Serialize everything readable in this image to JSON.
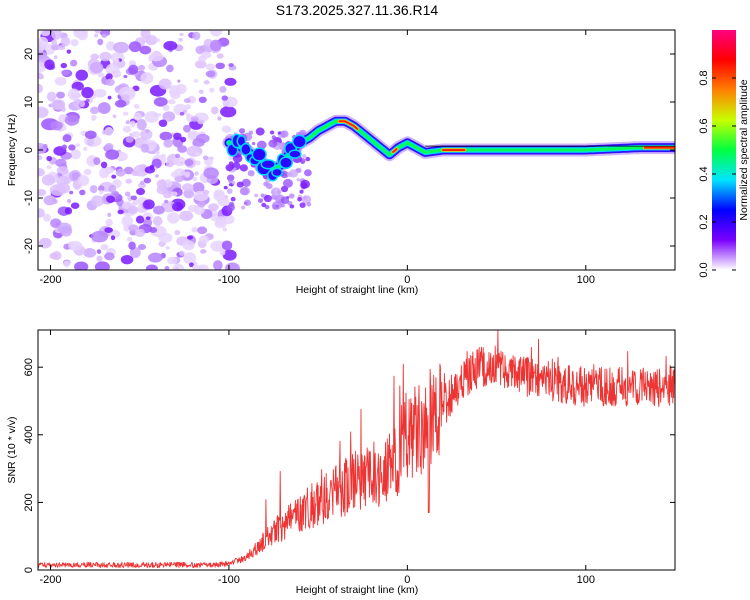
{
  "figure_title": "S173.2025.327.11.36.R14",
  "chart_data": [
    {
      "type": "heatmap",
      "name": "spectrogram",
      "xlabel": "Height of straight line (km)",
      "ylabel": "Frequency (Hz)",
      "xlim": [
        -207,
        150
      ],
      "ylim": [
        -25,
        25
      ],
      "xticks": [
        -200,
        -100,
        0,
        100
      ],
      "yticks": [
        -20,
        -10,
        0,
        10,
        20
      ],
      "xtick_labels": [
        "-200",
        "-100",
        "0",
        "100"
      ],
      "ytick_labels": [
        "-20",
        "-10",
        "0",
        "10",
        "20"
      ],
      "noise_region_x": [
        -207,
        -98
      ],
      "signal_track": {
        "x": [
          -100,
          -95,
          -90,
          -85,
          -80,
          -75,
          -70,
          -65,
          -60,
          -55,
          -50,
          -45,
          -40,
          -35,
          -30,
          -25,
          -20,
          -15,
          -10,
          -5,
          0,
          5,
          10,
          20,
          30,
          60,
          100,
          130,
          150
        ],
        "freq": [
          1.5,
          1,
          0,
          -2,
          -3,
          -4,
          -3,
          0,
          1.5,
          2.5,
          4,
          5,
          6,
          6,
          5,
          3.5,
          2,
          0.5,
          -1,
          0.5,
          1.5,
          0.5,
          -0.5,
          0,
          0,
          0,
          0,
          0.5,
          0.5
        ]
      },
      "colorbar": {
        "label": "Normalized spectral amplitude",
        "min": 0,
        "max": 1,
        "ticks": [
          0.0,
          0.2,
          0.4,
          0.6,
          0.8
        ],
        "tick_labels": [
          "0.0",
          "0.2",
          "0.4",
          "0.6",
          "0.8"
        ],
        "colors": [
          "#ffffff",
          "#7a00ff",
          "#0000ff",
          "#00e5ff",
          "#00ff40",
          "#c8ff00",
          "#ff8000",
          "#ff0000",
          "#ff0080"
        ]
      }
    },
    {
      "type": "line",
      "name": "snr",
      "xlabel": "Height of straight line (km)",
      "ylabel": "SNR (10 * v/v)",
      "xlim": [
        -207,
        150
      ],
      "ylim": [
        0,
        710
      ],
      "xticks": [
        -200,
        -100,
        0,
        100
      ],
      "yticks": [
        0,
        200,
        400,
        600
      ],
      "xtick_labels": [
        "-200",
        "-100",
        "0",
        "100"
      ],
      "ytick_labels": [
        "0",
        "200",
        "400",
        "600"
      ],
      "color": "#ee3333",
      "trend": {
        "x": [
          -207,
          -110,
          -100,
          -90,
          -80,
          -70,
          -60,
          -50,
          -40,
          -30,
          -20,
          -10,
          -5,
          0,
          10,
          20,
          30,
          40,
          50,
          60,
          80,
          100,
          120,
          150
        ],
        "y": [
          15,
          15,
          18,
          40,
          90,
          130,
          170,
          200,
          230,
          260,
          280,
          300,
          340,
          400,
          440,
          480,
          560,
          600,
          610,
          580,
          560,
          540,
          545,
          540
        ]
      }
    }
  ]
}
